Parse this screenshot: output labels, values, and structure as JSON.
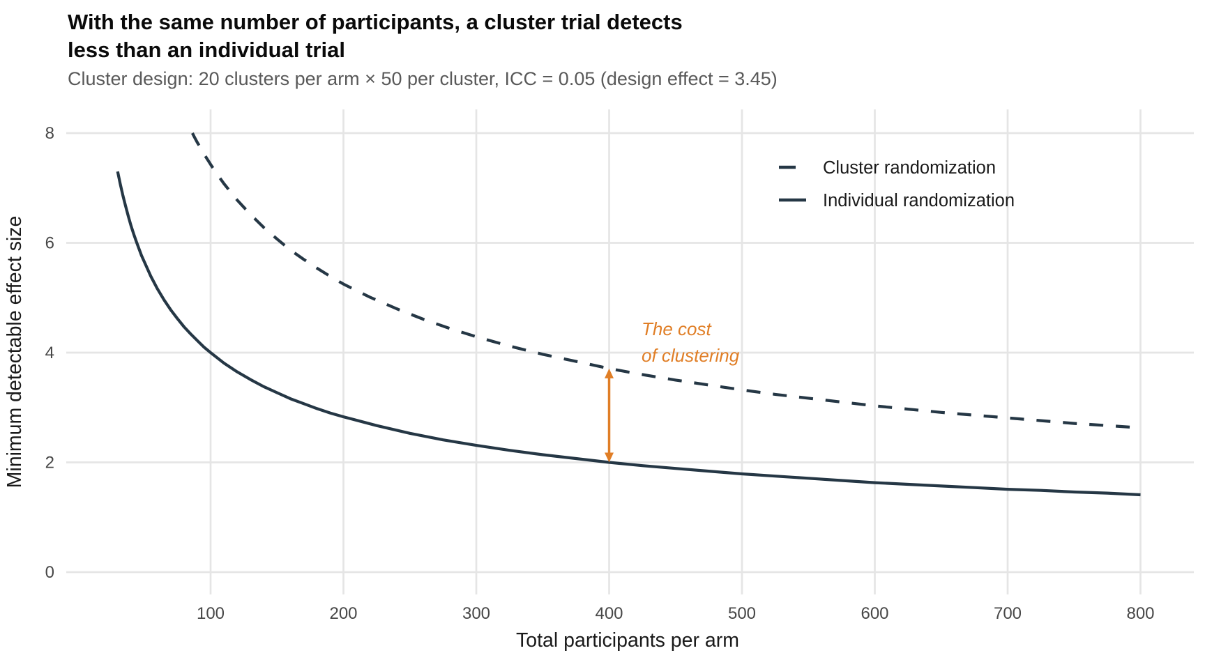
{
  "title": {
    "line1": "With the same number of participants, a cluster trial detects",
    "line2": "less than an individual trial"
  },
  "subtitle": "Cluster design: 20 clusters per arm × 50 per cluster, ICC = 0.05 (design effect = 3.45)",
  "colors": {
    "line": "#253745",
    "accent_orange": "#E07E26",
    "gridline": "#E5E5E5",
    "tick_label": "#474747",
    "axis_title": "#1A1A1A",
    "legend_text": "#1A1A1A",
    "title_text": "#0A0A0A",
    "subtitle_text": "#595959",
    "background": "#FFFFFF"
  },
  "legend": {
    "items": [
      {
        "label": "Cluster randomization",
        "style": "dashed"
      },
      {
        "label": "Individual randomization",
        "style": "solid"
      }
    ],
    "position": "top-right-inside"
  },
  "annotation": {
    "line1": "The cost",
    "line2": "of clustering"
  },
  "chart_data": {
    "type": "line",
    "xlabel": "Total participants per arm",
    "ylabel": "Minimum detectable effect size",
    "xlim": [
      30,
      800
    ],
    "ylim": [
      0,
      8
    ],
    "x_ticks": [
      100,
      200,
      300,
      400,
      500,
      600,
      700,
      800
    ],
    "y_ticks": [
      0,
      2,
      4,
      6,
      8
    ],
    "grid": "major-only",
    "legend_position": "top-right inside panel",
    "series": [
      {
        "name": "Cluster randomization",
        "style": "dashed",
        "x": [
          86.3,
          88,
          90,
          92,
          95,
          100,
          105,
          110,
          115,
          120,
          130,
          140,
          150,
          160,
          170,
          180,
          190,
          200,
          220,
          240,
          260,
          280,
          300,
          325,
          350,
          375,
          400,
          425,
          450,
          475,
          500,
          525,
          550,
          575,
          600,
          625,
          650,
          675,
          700,
          725,
          750,
          775,
          800
        ],
        "y": [
          8.0,
          7.92,
          7.83,
          7.75,
          7.62,
          7.43,
          7.25,
          7.08,
          6.93,
          6.78,
          6.52,
          6.28,
          6.07,
          5.87,
          5.7,
          5.54,
          5.39,
          5.25,
          5.01,
          4.8,
          4.61,
          4.44,
          4.29,
          4.12,
          3.97,
          3.84,
          3.71,
          3.6,
          3.5,
          3.41,
          3.32,
          3.24,
          3.17,
          3.1,
          3.03,
          2.97,
          2.91,
          2.86,
          2.81,
          2.76,
          2.71,
          2.67,
          2.63
        ]
      },
      {
        "name": "Individual randomization",
        "style": "solid",
        "x": [
          30,
          32,
          34,
          36,
          38,
          40,
          42,
          44,
          46,
          48,
          50,
          55,
          60,
          65,
          70,
          75,
          80,
          85,
          90,
          95,
          100,
          110,
          120,
          130,
          140,
          150,
          160,
          170,
          180,
          190,
          200,
          225,
          250,
          275,
          300,
          325,
          350,
          375,
          400,
          425,
          450,
          475,
          500,
          525,
          550,
          575,
          600,
          625,
          650,
          675,
          700,
          725,
          750,
          775,
          800
        ],
        "y": [
          7.3,
          7.07,
          6.86,
          6.67,
          6.49,
          6.32,
          6.17,
          6.03,
          5.9,
          5.77,
          5.66,
          5.39,
          5.16,
          4.96,
          4.78,
          4.62,
          4.47,
          4.34,
          4.22,
          4.1,
          4.0,
          3.81,
          3.65,
          3.51,
          3.38,
          3.27,
          3.16,
          3.07,
          2.98,
          2.9,
          2.83,
          2.67,
          2.53,
          2.41,
          2.31,
          2.22,
          2.14,
          2.07,
          2.0,
          1.94,
          1.89,
          1.84,
          1.79,
          1.75,
          1.71,
          1.67,
          1.63,
          1.6,
          1.57,
          1.54,
          1.51,
          1.49,
          1.46,
          1.44,
          1.41
        ]
      }
    ],
    "annotation_arrow": {
      "x": 400,
      "y_from": 2.0,
      "y_to": 3.71
    }
  }
}
